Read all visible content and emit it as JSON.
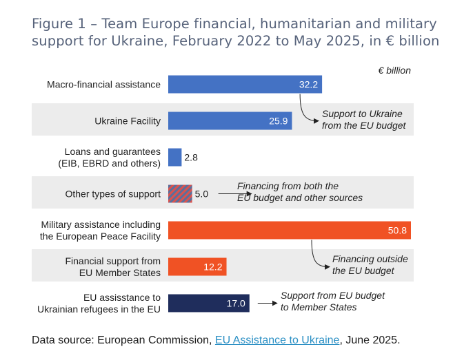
{
  "figure": {
    "title_line1": "Figure 1 – Team Europe financial, humanitarian and military",
    "title_line2": "support for Ukraine, February 2022 to May 2025, in € billion",
    "source_prefix": "Data source: European Commission, ",
    "source_link": "EU Assistance to Ukraine",
    "source_suffix": ", June 2025."
  },
  "colors": {
    "blue": "#4472c4",
    "hatch_a": "#d9534f",
    "hatch_b": "#5a6f9c",
    "orange": "#f05224",
    "navy": "#1f2d5c",
    "band": "#ececec"
  },
  "chart_data": {
    "type": "bar",
    "orientation": "horizontal",
    "unit_label": "€ billion",
    "xlim": [
      0,
      50.8
    ],
    "bars": [
      {
        "label": [
          "Macro-financial assistance"
        ],
        "value": 32.2,
        "value_label": "32.2",
        "color": "blue",
        "shaded": false
      },
      {
        "label": [
          "Ukraine Facility"
        ],
        "value": 25.9,
        "value_label": "25.9",
        "color": "blue",
        "shaded": true
      },
      {
        "label": [
          "Loans and guarantees",
          "(EIB, EBRD and others)"
        ],
        "value": 2.8,
        "value_label": "2.8",
        "color": "blue",
        "shaded": false
      },
      {
        "label": [
          "Other types of support"
        ],
        "value": 5.0,
        "value_label": "5.0",
        "color": "hatched",
        "shaded": true
      },
      {
        "label": [
          "Military assistance including",
          "the European Peace Facility"
        ],
        "value": 50.8,
        "value_label": "50.8",
        "color": "orange",
        "shaded": false
      },
      {
        "label": [
          "Financial support from",
          "EU Member States"
        ],
        "value": 12.2,
        "value_label": "12.2",
        "color": "orange",
        "shaded": true
      },
      {
        "label": [
          "EU assisstance to",
          "Ukrainian refugees in the EU"
        ],
        "value": 17.0,
        "value_label": "17.0",
        "color": "navy",
        "shaded": false
      }
    ],
    "annotations": [
      {
        "lines": [
          "Support to Ukraine",
          "from the EU budget"
        ],
        "points_to": "Macro-financial assistance",
        "style": "curved-arrow"
      },
      {
        "lines": [
          "Financing from both the",
          "EU budget and other sources"
        ],
        "points_to": "Other types of support",
        "style": "arrow"
      },
      {
        "lines": [
          "Financing outside",
          "the EU budget"
        ],
        "points_to": "Military assistance including the European Peace Facility",
        "style": "curved-arrow"
      },
      {
        "lines": [
          "Support from EU budget",
          "to Member States"
        ],
        "points_to": "EU assisstance to Ukrainian refugees in the EU",
        "style": "arrow"
      }
    ]
  }
}
